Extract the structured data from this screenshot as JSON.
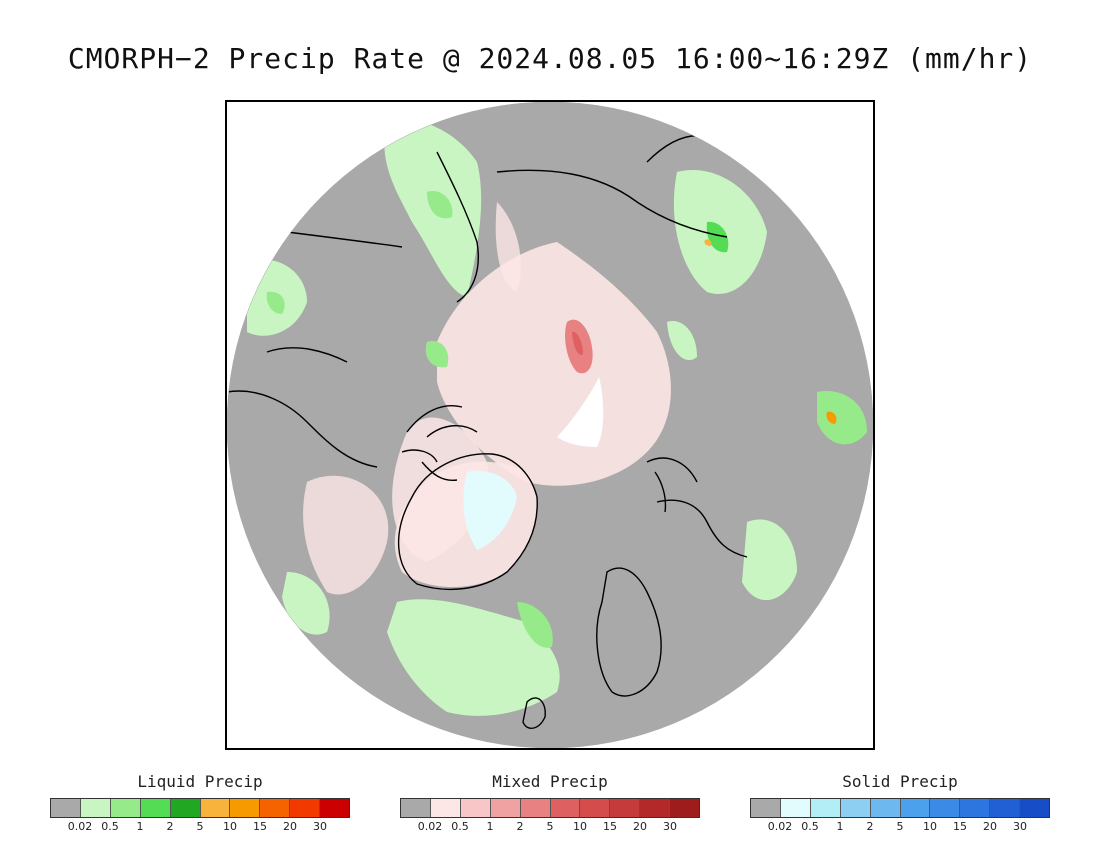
{
  "title": "CMORPH−2 Precip Rate @ 2024.08.05 16:00~16:29Z (mm/hr)",
  "map": {
    "projection": "north-polar-stereographic",
    "background_color": "#a9a9a9",
    "coastline_color": "#000000"
  },
  "legends": [
    {
      "title": "Liquid Precip",
      "colors": [
        "#a9a9a9",
        "#c8f5c2",
        "#96ea8a",
        "#55dc55",
        "#22a722",
        "#f8b33c",
        "#f79a00",
        "#f56200",
        "#f23a00",
        "#cc0000"
      ],
      "ticks": [
        "0.02",
        "0.5",
        "1",
        "2",
        "5",
        "10",
        "15",
        "20",
        "30"
      ]
    },
    {
      "title": "Mixed Precip",
      "colors": [
        "#a9a9a9",
        "#fde6e6",
        "#f8c6c6",
        "#f0a1a1",
        "#e88282",
        "#de6060",
        "#d44c4c",
        "#c53a3a",
        "#b32828",
        "#9e1c1c"
      ],
      "ticks": [
        "0.02",
        "0.5",
        "1",
        "2",
        "5",
        "10",
        "15",
        "20",
        "30"
      ]
    },
    {
      "title": "Solid Precip",
      "colors": [
        "#a9a9a9",
        "#e2fbfd",
        "#b3eef7",
        "#8ccff2",
        "#6cb8ef",
        "#4ca1ec",
        "#3a8ae6",
        "#2d76e0",
        "#2160d4",
        "#174dc6"
      ],
      "ticks": [
        "0.02",
        "0.5",
        "1",
        "2",
        "5",
        "10",
        "15",
        "20",
        "30"
      ]
    }
  ]
}
